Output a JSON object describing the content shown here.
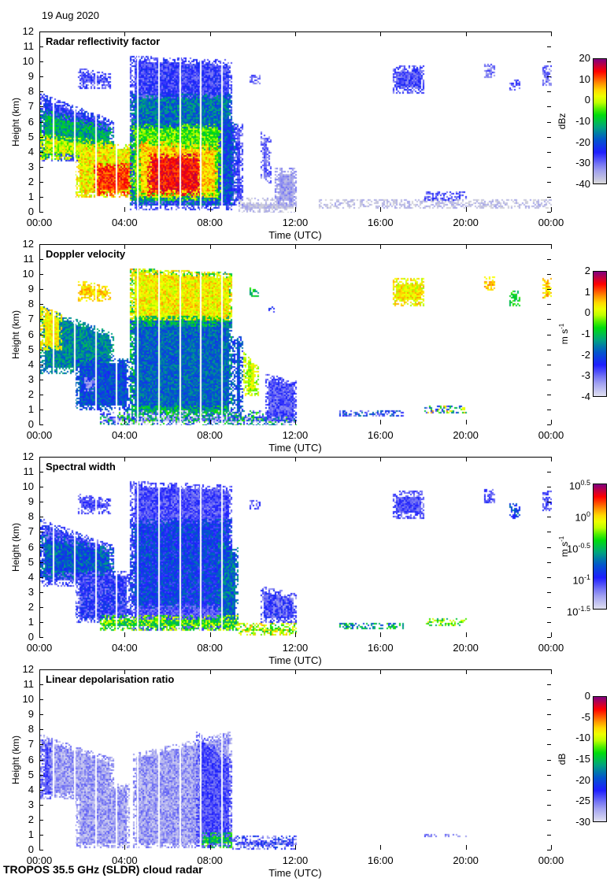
{
  "date": "19 Aug 2020",
  "footer": "TROPOS 35.5 GHz (SLDR) cloud radar",
  "chart_data": [
    {
      "type": "heatmap",
      "title": "Radar reflectivity factor",
      "xlabel": "Time (UTC)",
      "ylabel": "Height (km)",
      "xlim": [
        0,
        24
      ],
      "ylim": [
        0,
        12
      ],
      "xticks": [
        0,
        4,
        8,
        12,
        16,
        20,
        24
      ],
      "xtick_labels": [
        "00:00",
        "04:00",
        "08:00",
        "12:00",
        "16:00",
        "20:00",
        "00:00"
      ],
      "yticks": [
        0,
        1,
        2,
        3,
        4,
        5,
        6,
        7,
        8,
        9,
        10,
        11,
        12
      ],
      "ytick_labels": [
        "0",
        "1",
        "2",
        "3",
        "4",
        "5",
        "6",
        "7",
        "8",
        "9",
        "10",
        "11",
        "12"
      ],
      "colorbar": {
        "label": "dBz",
        "range": [
          -40,
          20
        ],
        "ticks": [
          "20",
          "10",
          "0",
          "-10",
          "-20",
          "-30",
          "-40"
        ],
        "low_color": "#d8d8d8"
      },
      "data_gaps_hours": [
        0.6,
        1.6,
        2.6,
        3.55,
        4.55,
        5.55,
        6.55,
        7.5,
        8.5
      ],
      "regions": [
        {
          "t": [
            0,
            3.4
          ],
          "z": [
            3.5,
            8,
            6.2
          ],
          "v": -25,
          "n": 6
        },
        {
          "t": [
            0,
            3.4
          ],
          "z": [
            3.7,
            7,
            5.7
          ],
          "v": -12,
          "n": 6
        },
        {
          "t": [
            0,
            3.4
          ],
          "z": [
            3.6,
            5.3,
            4.8
          ],
          "v": 0,
          "n": 6
        },
        {
          "t": [
            1.6,
            4.4
          ],
          "z": [
            1,
            4.6,
            4.6
          ],
          "v": 3,
          "n": 6
        },
        {
          "t": [
            2.5,
            4.3
          ],
          "z": [
            1.2,
            3.4,
            3.4
          ],
          "v": 12,
          "n": 4
        },
        {
          "t": [
            4.2,
            9
          ],
          "z": [
            0.2,
            10.5,
            10.2
          ],
          "v": -27,
          "n": 5
        },
        {
          "t": [
            4.2,
            9
          ],
          "z": [
            0.5,
            8,
            8
          ],
          "v": -17,
          "n": 6
        },
        {
          "t": [
            4.2,
            8.8
          ],
          "z": [
            0.8,
            6,
            6
          ],
          "v": -5,
          "n": 6
        },
        {
          "t": [
            4.5,
            8.3
          ],
          "z": [
            1,
            5,
            4.5
          ],
          "v": 5,
          "n": 5
        },
        {
          "t": [
            5,
            7.5
          ],
          "z": [
            1.2,
            4,
            4
          ],
          "v": 14,
          "n": 4
        },
        {
          "t": [
            8.3,
            9.2
          ],
          "z": [
            0.5,
            6.5,
            6
          ],
          "v": -20,
          "n": 6
        },
        {
          "t": [
            9,
            9.5
          ],
          "z": [
            0.5,
            6,
            6
          ],
          "v": -28,
          "n": 5
        },
        {
          "t": [
            9.3,
            12
          ],
          "z": [
            0,
            1,
            1
          ],
          "v": -37,
          "n": 3
        },
        {
          "t": [
            10.3,
            10.8
          ],
          "z": [
            2,
            5.5,
            5
          ],
          "v": -30,
          "n": 5
        },
        {
          "t": [
            11,
            12
          ],
          "z": [
            0.5,
            3,
            3
          ],
          "v": -34,
          "n": 4
        },
        {
          "t": [
            1.7,
            3.3
          ],
          "z": [
            8.3,
            9.7,
            9.3
          ],
          "v": -28,
          "n": 5
        },
        {
          "t": [
            9.8,
            10.3
          ],
          "z": [
            8.6,
            9.2,
            9.2
          ],
          "v": -30,
          "n": 4
        },
        {
          "t": [
            13,
            24
          ],
          "z": [
            0.3,
            0.9,
            0.9
          ],
          "v": -37,
          "n": 3
        },
        {
          "t": [
            18,
            20
          ],
          "z": [
            0.8,
            1.5,
            1.5
          ],
          "v": -28,
          "n": 5
        },
        {
          "t": [
            16.5,
            18
          ],
          "z": [
            8,
            9.8,
            9.8
          ],
          "v": -28,
          "n": 5
        },
        {
          "t": [
            20.8,
            21.3
          ],
          "z": [
            9,
            10,
            10
          ],
          "v": -30,
          "n": 4
        },
        {
          "t": [
            22,
            22.5
          ],
          "z": [
            8.2,
            8.9,
            8.9
          ],
          "v": -28,
          "n": 4
        },
        {
          "t": [
            23.5,
            24
          ],
          "z": [
            8.5,
            9.8,
            9.8
          ],
          "v": -30,
          "n": 4
        }
      ]
    },
    {
      "type": "heatmap",
      "title": "Doppler velocity",
      "xlabel": "Time (UTC)",
      "ylabel": "Height (km)",
      "xlim": [
        0,
        24
      ],
      "ylim": [
        0,
        12
      ],
      "xticks": [
        0,
        4,
        8,
        12,
        16,
        20,
        24
      ],
      "xtick_labels": [
        "00:00",
        "04:00",
        "08:00",
        "12:00",
        "16:00",
        "20:00",
        "00:00"
      ],
      "yticks": [
        0,
        1,
        2,
        3,
        4,
        5,
        6,
        7,
        8,
        9,
        10,
        11,
        12
      ],
      "ytick_labels": [
        "0",
        "1",
        "2",
        "3",
        "4",
        "5",
        "6",
        "7",
        "8",
        "9",
        "10",
        "11",
        "12"
      ],
      "colorbar": {
        "label": "m s",
        "label_exp": "-1",
        "range": [
          -4,
          2
        ],
        "ticks": [
          "2",
          "1",
          "0",
          "-1",
          "-2",
          "-3",
          "-4"
        ],
        "low_color": "#e0e0f0"
      },
      "data_gaps_hours": [
        0.6,
        1.6,
        2.6,
        3.55,
        4.55,
        5.55,
        6.55,
        7.5,
        8.5
      ],
      "regions": [
        {
          "t": [
            0,
            3.4
          ],
          "z": [
            3.5,
            8,
            6.2
          ],
          "v": -1.5,
          "n": 0.5
        },
        {
          "t": [
            0,
            1
          ],
          "z": [
            5,
            8,
            7.5
          ],
          "v": 0.3,
          "n": 0.4
        },
        {
          "t": [
            1.6,
            4.2
          ],
          "z": [
            1,
            4.5,
            4.5
          ],
          "v": -2,
          "n": 0.5
        },
        {
          "t": [
            2,
            2.6
          ],
          "z": [
            2.3,
            3.3,
            3.3
          ],
          "v": -3.3,
          "n": 0.3
        },
        {
          "t": [
            4.2,
            9
          ],
          "z": [
            0.5,
            10.5,
            10.2
          ],
          "v": -1,
          "n": 0.5
        },
        {
          "t": [
            4.2,
            9
          ],
          "z": [
            7,
            10.5,
            10.2
          ],
          "v": 0.3,
          "n": 0.5
        },
        {
          "t": [
            4.2,
            9
          ],
          "z": [
            1,
            7,
            7
          ],
          "v": -1.8,
          "n": 0.5
        },
        {
          "t": [
            9,
            9.5
          ],
          "z": [
            0.5,
            6,
            6
          ],
          "v": -2,
          "n": 0.5
        },
        {
          "t": [
            9.5,
            10.2
          ],
          "z": [
            2,
            5,
            4
          ],
          "v": 0,
          "n": 0.5
        },
        {
          "t": [
            2.8,
            12
          ],
          "z": [
            0,
            1,
            1
          ],
          "v": -2.3,
          "n": 2
        },
        {
          "t": [
            10.5,
            12
          ],
          "z": [
            0.3,
            3.5,
            3
          ],
          "v": -2.8,
          "n": 0.5
        },
        {
          "t": [
            1.7,
            3.3
          ],
          "z": [
            8.3,
            9.7,
            9.3
          ],
          "v": 0.5,
          "n": 0.4
        },
        {
          "t": [
            9.8,
            10.3
          ],
          "z": [
            8.6,
            9.2,
            9.2
          ],
          "v": -1,
          "n": 0.5
        },
        {
          "t": [
            10.7,
            11
          ],
          "z": [
            7.5,
            8,
            8
          ],
          "v": -2.5,
          "n": 0.4
        },
        {
          "t": [
            14,
            17
          ],
          "z": [
            0.6,
            1.1,
            1.1
          ],
          "v": -2.5,
          "n": 1
        },
        {
          "t": [
            18,
            20
          ],
          "z": [
            0.8,
            1.4,
            1.4
          ],
          "v": -1,
          "n": 2
        },
        {
          "t": [
            16.5,
            18
          ],
          "z": [
            8,
            9.8,
            9.8
          ],
          "v": 0.3,
          "n": 0.5
        },
        {
          "t": [
            20.8,
            21.3
          ],
          "z": [
            9,
            10,
            10
          ],
          "v": 0.6,
          "n": 0.4
        },
        {
          "t": [
            22,
            22.5
          ],
          "z": [
            8,
            9,
            9
          ],
          "v": -0.8,
          "n": 0.4
        },
        {
          "t": [
            23.5,
            24
          ],
          "z": [
            8.5,
            9.8,
            9.8
          ],
          "v": 0.5,
          "n": 0.4
        }
      ]
    },
    {
      "type": "heatmap",
      "title": "Spectral width",
      "xlabel": "Time (UTC)",
      "ylabel": "Height (km)",
      "xlim": [
        0,
        24
      ],
      "ylim": [
        0,
        12
      ],
      "xticks": [
        0,
        4,
        8,
        12,
        16,
        20,
        24
      ],
      "xtick_labels": [
        "00:00",
        "04:00",
        "08:00",
        "12:00",
        "16:00",
        "20:00",
        "00:00"
      ],
      "yticks": [
        0,
        1,
        2,
        3,
        4,
        5,
        6,
        7,
        8,
        9,
        10,
        11,
        12
      ],
      "ytick_labels": [
        "0",
        "1",
        "2",
        "3",
        "4",
        "5",
        "6",
        "7",
        "8",
        "9",
        "10",
        "11",
        "12"
      ],
      "colorbar": {
        "label": "m s",
        "label_exp": "-1",
        "range": [
          -1.5,
          0.5
        ],
        "scale": "log10",
        "tick_base": "10",
        "tick_exps": [
          "0.5",
          "0",
          "-0.5",
          "-1",
          "-1.5"
        ],
        "low_color": "#e0e0f0"
      },
      "data_gaps_hours": [
        0.6,
        1.6,
        2.6,
        3.55,
        4.55,
        5.55,
        6.55,
        7.5,
        8.5
      ],
      "regions": [
        {
          "t": [
            0,
            3.4
          ],
          "z": [
            3.5,
            8,
            6.2
          ],
          "v": -1.05,
          "n": 0.2
        },
        {
          "t": [
            0,
            3.4
          ],
          "z": [
            4,
            7,
            6
          ],
          "v": -0.8,
          "n": 0.2
        },
        {
          "t": [
            1.6,
            4.2
          ],
          "z": [
            1,
            4.5,
            4.5
          ],
          "v": -1.05,
          "n": 0.2
        },
        {
          "t": [
            4.2,
            9
          ],
          "z": [
            0.5,
            10.5,
            10.2
          ],
          "v": -1.1,
          "n": 0.15
        },
        {
          "t": [
            4.2,
            9
          ],
          "z": [
            2,
            8,
            8
          ],
          "v": -0.9,
          "n": 0.2
        },
        {
          "t": [
            8.3,
            9.3
          ],
          "z": [
            0.5,
            6.5,
            6
          ],
          "v": -0.75,
          "n": 0.2
        },
        {
          "t": [
            2.8,
            9.3
          ],
          "z": [
            0.5,
            1.6,
            1.6
          ],
          "v": -0.35,
          "n": 0.3
        },
        {
          "t": [
            9.3,
            12
          ],
          "z": [
            0.2,
            1,
            1
          ],
          "v": -0.2,
          "n": 0.3
        },
        {
          "t": [
            10.3,
            12
          ],
          "z": [
            1,
            3.5,
            3
          ],
          "v": -1.1,
          "n": 0.2
        },
        {
          "t": [
            1.7,
            3.3
          ],
          "z": [
            8.3,
            9.7,
            9.3
          ],
          "v": -1.1,
          "n": 0.15
        },
        {
          "t": [
            9.8,
            10.3
          ],
          "z": [
            8.6,
            9.2,
            9.2
          ],
          "v": -1.1,
          "n": 0.15
        },
        {
          "t": [
            14,
            17
          ],
          "z": [
            0.6,
            1.1,
            1.1
          ],
          "v": -0.6,
          "n": 0.3
        },
        {
          "t": [
            18,
            20
          ],
          "z": [
            0.8,
            1.4,
            1.4
          ],
          "v": -0.3,
          "n": 0.3
        },
        {
          "t": [
            16.5,
            18
          ],
          "z": [
            8,
            9.8,
            9.8
          ],
          "v": -1.1,
          "n": 0.15
        },
        {
          "t": [
            20.8,
            21.3
          ],
          "z": [
            9,
            10,
            10
          ],
          "v": -1.1,
          "n": 0.15
        },
        {
          "t": [
            22,
            22.5
          ],
          "z": [
            8,
            9,
            9
          ],
          "v": -0.85,
          "n": 0.2
        },
        {
          "t": [
            23.5,
            24
          ],
          "z": [
            8.5,
            9.8,
            9.8
          ],
          "v": -1.1,
          "n": 0.15
        }
      ]
    },
    {
      "type": "heatmap",
      "title": "Linear depolarisation ratio",
      "xlabel": "Time (UTC)",
      "ylabel": "Height (km)",
      "xlim": [
        0,
        24
      ],
      "ylim": [
        0,
        12
      ],
      "xticks": [
        0,
        4,
        8,
        12,
        16,
        20,
        24
      ],
      "xtick_labels": [
        "00:00",
        "04:00",
        "08:00",
        "12:00",
        "16:00",
        "20:00",
        "00:00"
      ],
      "yticks": [
        0,
        1,
        2,
        3,
        4,
        5,
        6,
        7,
        8,
        9,
        10,
        11,
        12
      ],
      "ytick_labels": [
        "0",
        "1",
        "2",
        "3",
        "4",
        "5",
        "6",
        "7",
        "8",
        "9",
        "10",
        "11",
        "12"
      ],
      "colorbar": {
        "label": "dB",
        "range": [
          -30,
          0
        ],
        "ticks": [
          "0",
          "-5",
          "-10",
          "-15",
          "-20",
          "-25",
          "-30"
        ],
        "low_color": "#e0e0f0"
      },
      "data_gaps_hours": [
        0.6,
        1.6,
        2.6,
        3.55,
        4.55,
        5.55,
        6.55,
        7.5,
        8.5
      ],
      "regions": [
        {
          "t": [
            0,
            3.4
          ],
          "z": [
            3.5,
            7.8,
            6.2
          ],
          "v": -27,
          "n": 2.5
        },
        {
          "t": [
            0,
            0.5
          ],
          "z": [
            3.5,
            7.5,
            7.3
          ],
          "v": -24,
          "n": 2
        },
        {
          "t": [
            1.6,
            4.2
          ],
          "z": [
            0.2,
            4.5,
            4.5
          ],
          "v": -27,
          "n": 2.5
        },
        {
          "t": [
            4.3,
            9
          ],
          "z": [
            0.2,
            6.5,
            8
          ],
          "v": -27,
          "n": 2.5
        },
        {
          "t": [
            7.3,
            9
          ],
          "z": [
            0.2,
            8,
            6
          ],
          "v": -24,
          "n": 2
        },
        {
          "t": [
            7.5,
            9
          ],
          "z": [
            0.2,
            1.3,
            1.3
          ],
          "v": -15,
          "n": 4
        },
        {
          "t": [
            9,
            12
          ],
          "z": [
            0.1,
            1,
            1
          ],
          "v": -24,
          "n": 4
        },
        {
          "t": [
            18,
            20
          ],
          "z": [
            0.9,
            1.2,
            1.2
          ],
          "v": -25,
          "n": 2
        }
      ]
    }
  ]
}
